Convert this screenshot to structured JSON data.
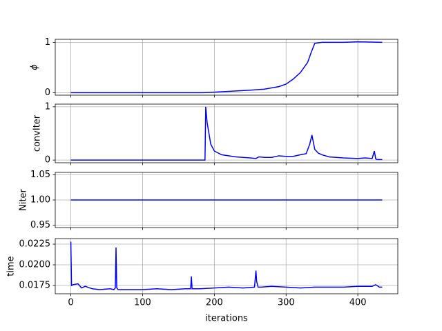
{
  "chart_data": [
    {
      "type": "line",
      "ylabel": "ϕ",
      "x": [
        0,
        185,
        200,
        250,
        270,
        290,
        300,
        310,
        320,
        330,
        335,
        340,
        350,
        380,
        400,
        434
      ],
      "values": [
        0,
        0,
        0.01,
        0.05,
        0.07,
        0.12,
        0.17,
        0.27,
        0.4,
        0.6,
        0.8,
        0.98,
        1.0,
        1.0,
        1.01,
        1.0
      ],
      "color": "#0000ff",
      "xlim": [
        -21.7,
        455.7
      ],
      "xticks": [
        0,
        100,
        200,
        300,
        400
      ],
      "ylim": [
        -0.05,
        1.06
      ],
      "yticks": [
        0,
        1
      ],
      "grid": true
    },
    {
      "type": "line",
      "ylabel": "convIter",
      "x": [
        0,
        187,
        188,
        190,
        195,
        200,
        210,
        230,
        250,
        258,
        262,
        270,
        280,
        290,
        300,
        310,
        320,
        328,
        333,
        336,
        340,
        345,
        350,
        360,
        380,
        400,
        410,
        420,
        423,
        425,
        427,
        434
      ],
      "values": [
        0,
        0,
        1,
        0.7,
        0.3,
        0.17,
        0.1,
        0.06,
        0.04,
        0.03,
        0.06,
        0.05,
        0.05,
        0.08,
        0.07,
        0.07,
        0.1,
        0.12,
        0.3,
        0.47,
        0.2,
        0.13,
        0.1,
        0.06,
        0.04,
        0.03,
        0.04,
        0.03,
        0.17,
        0.02,
        0.01,
        0.01
      ],
      "color": "#0000ff",
      "xlim": [
        -21.7,
        455.7
      ],
      "xticks": [
        0,
        100,
        200,
        300,
        400
      ],
      "ylim": [
        -0.05,
        1.05
      ],
      "yticks": [
        0,
        1
      ],
      "grid": true
    },
    {
      "type": "line",
      "ylabel": "Niter",
      "x": [
        0,
        434
      ],
      "values": [
        1,
        1
      ],
      "color": "#0000ff",
      "xlim": [
        -21.7,
        455.7
      ],
      "xticks": [
        0,
        100,
        200,
        300,
        400
      ],
      "ylim": [
        0.945,
        1.055
      ],
      "yticks": [
        {
          "value": 0.95,
          "label": "0.95"
        },
        {
          "value": 1.0,
          "label": "1.00"
        },
        {
          "value": 1.05,
          "label": "1.05"
        }
      ],
      "grid": true
    },
    {
      "type": "line",
      "ylabel": "time",
      "xlabel": "iterations",
      "x": [
        0,
        1,
        3,
        10,
        15,
        20,
        30,
        40,
        55,
        60,
        62,
        63,
        64,
        66,
        80,
        100,
        120,
        140,
        160,
        167,
        168,
        169,
        180,
        200,
        220,
        240,
        256,
        258,
        259,
        261,
        265,
        280,
        300,
        320,
        340,
        360,
        380,
        400,
        420,
        425,
        430,
        434
      ],
      "values": [
        0.0228,
        0.0175,
        0.0176,
        0.0177,
        0.0172,
        0.0174,
        0.0171,
        0.017,
        0.0171,
        0.017,
        0.0172,
        0.0221,
        0.0172,
        0.017,
        0.017,
        0.017,
        0.0171,
        0.017,
        0.0171,
        0.0171,
        0.0186,
        0.0171,
        0.0171,
        0.0172,
        0.0173,
        0.0172,
        0.0173,
        0.0193,
        0.018,
        0.0173,
        0.0173,
        0.0174,
        0.0173,
        0.0172,
        0.0173,
        0.0173,
        0.0173,
        0.0174,
        0.0174,
        0.0176,
        0.0173,
        0.0173
      ],
      "color": "#0000ff",
      "xlim": [
        -21.7,
        455.7
      ],
      "xticks": [
        0,
        100,
        200,
        300,
        400
      ],
      "ylim": [
        0.0165,
        0.02317
      ],
      "yticks": [
        0.0175,
        {
          "value": 0.02,
          "label": "0.0200"
        },
        0.0225
      ],
      "grid": true
    }
  ]
}
